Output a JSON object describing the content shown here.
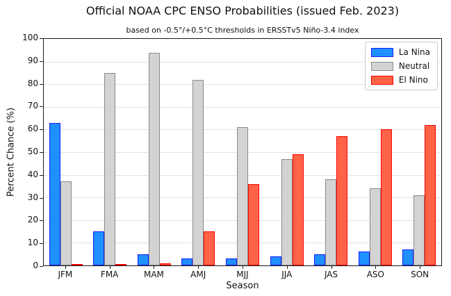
{
  "chart_data": {
    "type": "bar",
    "title": "Official NOAA CPC ENSO Probabilities (issued Feb. 2023)",
    "subtitle": "based on -0.5°/+0.5°C thresholds in ERSSTv5 Niño-3.4 index",
    "xlabel": "Season",
    "ylabel": "Percent Chance (%)",
    "ylim": [
      0,
      100
    ],
    "ytick_step": 10,
    "grid": true,
    "legend_position": "upper right",
    "categories": [
      "JFM",
      "FMA",
      "MAM",
      "AMJ",
      "MJJ",
      "JJA",
      "JAS",
      "ASO",
      "SON"
    ],
    "series": [
      {
        "name": "La Nina",
        "fill": "#1e90ff",
        "edge": "#1a1aff",
        "values": [
          63,
          15,
          5,
          3,
          3,
          4,
          5,
          6,
          7
        ]
      },
      {
        "name": "Neutral",
        "fill": "#d3d3d3",
        "edge": "#8a8a8a",
        "values": [
          37,
          85,
          94,
          82,
          61,
          47,
          38,
          34,
          31
        ]
      },
      {
        "name": "El Nino",
        "fill": "#ff6347",
        "edge": "#ff0000",
        "values": [
          0,
          0,
          1,
          15,
          36,
          49,
          57,
          60,
          62
        ]
      }
    ],
    "colors": {
      "background": "#ffffff",
      "spine": "#1a1a1a",
      "grid": "#e3e3e3"
    }
  }
}
